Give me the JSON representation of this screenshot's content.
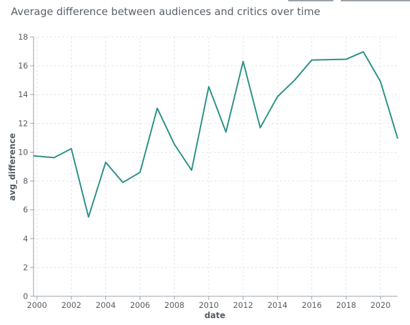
{
  "chart_data": {
    "type": "line",
    "title": "Average difference between audiences and critics over time",
    "xlabel": "date",
    "ylabel": "avg_difference",
    "xlim": [
      1999.8,
      2021
    ],
    "ylim": [
      0,
      18
    ],
    "x_ticks": [
      "2000",
      "2002",
      "2004",
      "2006",
      "2008",
      "2010",
      "2012",
      "2014",
      "2016",
      "2018",
      "2020"
    ],
    "y_ticks": [
      "0",
      "2",
      "4",
      "6",
      "8",
      "10",
      "12",
      "14",
      "16",
      "18"
    ],
    "grid": true,
    "line_color": "#2a9087",
    "series": [
      {
        "x": [
          1999.8,
          2001,
          2002,
          2003,
          2004,
          2005,
          2006,
          2007,
          2008,
          2009,
          2010,
          2011,
          2012,
          2013,
          2014,
          2015,
          2016,
          2017,
          2018,
          2019,
          2020,
          2021
        ],
        "values": [
          9.75,
          9.62,
          10.25,
          5.5,
          9.3,
          7.9,
          8.6,
          13.05,
          10.55,
          8.75,
          14.55,
          11.4,
          16.3,
          11.7,
          13.85,
          15.0,
          16.4,
          16.43,
          16.45,
          16.97,
          14.9,
          10.95
        ]
      }
    ]
  }
}
